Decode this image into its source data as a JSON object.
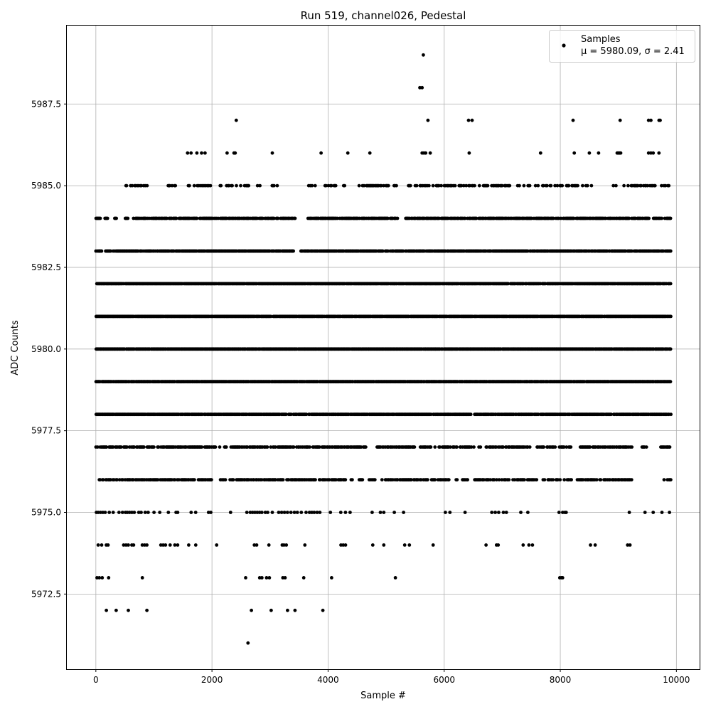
{
  "chart_data": {
    "type": "scatter",
    "title": "Run 519, channel026, Pedestal",
    "xlabel": "Sample #",
    "ylabel": "ADC Counts",
    "xlim": [
      -500,
      10400
    ],
    "ylim": [
      5970.2,
      5989.9
    ],
    "xticks": [
      0,
      2000,
      4000,
      6000,
      8000,
      10000
    ],
    "xtick_labels": [
      "0",
      "2000",
      "4000",
      "6000",
      "8000",
      "10000"
    ],
    "yticks": [
      5972.5,
      5975.0,
      5977.5,
      5980.0,
      5982.5,
      5985.0,
      5987.5
    ],
    "ytick_labels": [
      "5972.5",
      "5975.0",
      "5977.5",
      "5980.0",
      "5982.5",
      "5985.0",
      "5987.5"
    ],
    "grid": true,
    "legend": {
      "position": "top-right",
      "series_label": "Samples",
      "stats_label": "μ = 5980.09, σ = 2.41"
    },
    "series": [
      {
        "name": "Samples",
        "color": "#000000",
        "marker": "circle",
        "n_samples": 10000,
        "levels": [
          {
            "y": 5971,
            "x": [
              2620
            ]
          },
          {
            "y": 5972,
            "x": [
              180,
              350,
              560,
              880,
              2680,
              3020,
              3300,
              3430,
              3910
            ]
          },
          {
            "y": 5973,
            "x": [
              20,
              60,
              110,
              220,
              800,
              2580,
              2820,
              2860,
              2940,
              2990,
              3220,
              3260,
              3580,
              4060,
              5160,
              7990,
              8020,
              8040
            ]
          },
          {
            "y": 5974,
            "x": [
              40,
              100,
              180,
              210,
              480,
              520,
              560,
              620,
              650,
              800,
              840,
              880,
              1120,
              1160,
              1200,
              1280,
              1360,
              1410,
              1600,
              1720,
              2080,
              2730,
              2770,
              2980,
              3210,
              3240,
              3280,
              3600,
              4220,
              4260,
              4300,
              4770,
              4960,
              5320,
              5400,
              5810,
              6720,
              6900,
              6930,
              7360,
              7460,
              7520,
              8520,
              8600,
              9160,
              9200
            ]
          },
          {
            "y": 5975,
            "x": [
              10,
              40,
              80,
              120,
              160,
              230,
              300,
              400,
              460,
              510,
              540,
              580,
              620,
              660,
              740,
              780,
              850,
              900,
              1000,
              1100,
              1250,
              1380,
              1410,
              1640,
              1720,
              1940,
              1980,
              2320,
              2600,
              2660,
              2700,
              2740,
              2780,
              2820,
              2860,
              2920,
              2960,
              3040,
              3150,
              3200,
              3250,
              3300,
              3360,
              3420,
              3470,
              3540,
              3620,
              3680,
              3720,
              3760,
              3810,
              3860,
              4040,
              4220,
              4300,
              4380,
              4760,
              4900,
              4960,
              5140,
              5300,
              6020,
              6100,
              6360,
              6820,
              6880,
              6940,
              7020,
              7070,
              7320,
              7440,
              7980,
              8040,
              8080,
              8100,
              9190,
              9460,
              9600,
              9750,
              9880
            ]
          },
          {
            "range": [
              0,
              9900
            ],
            "y": 5976,
            "density": 0.62,
            "gaps": [
              [
                1700,
                1760
              ],
              [
                2000,
                2120
              ],
              [
                2230,
                2300
              ],
              [
                4300,
                4380
              ],
              [
                4420,
                4500
              ],
              [
                4600,
                4700
              ],
              [
                4810,
                4900
              ],
              [
                5720,
                5780
              ],
              [
                6090,
                6180
              ],
              [
                6220,
                6270
              ],
              [
                6400,
                6520
              ],
              [
                7600,
                7680
              ],
              [
                8200,
                8280
              ],
              [
                9240,
                9760
              ]
            ]
          },
          {
            "range": [
              0,
              9900
            ],
            "y": 5977,
            "density": 0.7,
            "gaps": [
              [
                1000,
                1060
              ],
              [
                2140,
                2200
              ],
              [
                2260,
                2310
              ],
              [
                4660,
                4840
              ],
              [
                5500,
                5560
              ],
              [
                5840,
                5900
              ],
              [
                6520,
                6580
              ],
              [
                7480,
                7600
              ],
              [
                7720,
                7760
              ],
              [
                8200,
                8340
              ],
              [
                8520,
                8540
              ],
              [
                9240,
                9400
              ],
              [
                9480,
                9720
              ]
            ]
          },
          {
            "range": [
              0,
              9900
            ],
            "y": 5978,
            "density": 0.9,
            "gaps": [
              [
                6460,
                6520
              ]
            ]
          },
          {
            "range": [
              0,
              9900
            ],
            "y": 5979,
            "density": 0.92,
            "gaps": []
          },
          {
            "range": [
              0,
              9900
            ],
            "y": 5980,
            "density": 0.96,
            "gaps": []
          },
          {
            "range": [
              0,
              9900
            ],
            "y": 5981,
            "density": 0.93,
            "gaps": []
          },
          {
            "range": [
              0,
              9900
            ],
            "y": 5982,
            "density": 0.93,
            "gaps": []
          },
          {
            "range": [
              0,
              9900
            ],
            "y": 5983,
            "density": 0.9,
            "gaps": [
              [
                100,
                160
              ],
              [
                3420,
                3520
              ]
            ]
          },
          {
            "range": [
              0,
              9900
            ],
            "y": 5984,
            "density": 0.78,
            "gaps": [
              [
                80,
                150
              ],
              [
                200,
                300
              ],
              [
                360,
                480
              ],
              [
                560,
                640
              ],
              [
                3440,
                3640
              ],
              [
                5220,
                5320
              ]
            ]
          },
          {
            "range": [
              500,
              9880
            ],
            "y": 5985,
            "density": 0.45,
            "gaps": [
              [
                880,
                1220
              ],
              [
                1380,
                1520
              ],
              [
                1990,
                2120
              ],
              [
                2640,
                2780
              ],
              [
                2840,
                2980
              ],
              [
                3140,
                3620
              ],
              [
                3780,
                3940
              ],
              [
                4140,
                4260
              ],
              [
                4360,
                4520
              ],
              [
                5180,
                5380
              ],
              [
                5500,
                5520
              ],
              [
                7140,
                7220
              ],
              [
                7300,
                7340
              ],
              [
                8060,
                8100
              ],
              [
                8320,
                8360
              ],
              [
                8620,
                8900
              ]
            ]
          },
          {
            "y": 5986,
            "x": [
              1580,
              1640,
              1740,
              1820,
              1880,
              2260,
              2380,
              2400,
              3040,
              3880,
              4340,
              4720,
              5620,
              5650,
              5680,
              5760,
              6430,
              7660,
              8240,
              8500,
              8660,
              8980,
              9000,
              9020,
              9040,
              9520,
              9560,
              9600,
              9700
            ]
          },
          {
            "y": 5987,
            "x": [
              2420,
              5720,
              6420,
              6480,
              8220,
              9030,
              9520,
              9560,
              9700,
              9720
            ]
          },
          {
            "y": 5988,
            "x": [
              5580,
              5620
            ]
          },
          {
            "y": 5989,
            "x": [
              5640
            ]
          }
        ]
      }
    ]
  }
}
